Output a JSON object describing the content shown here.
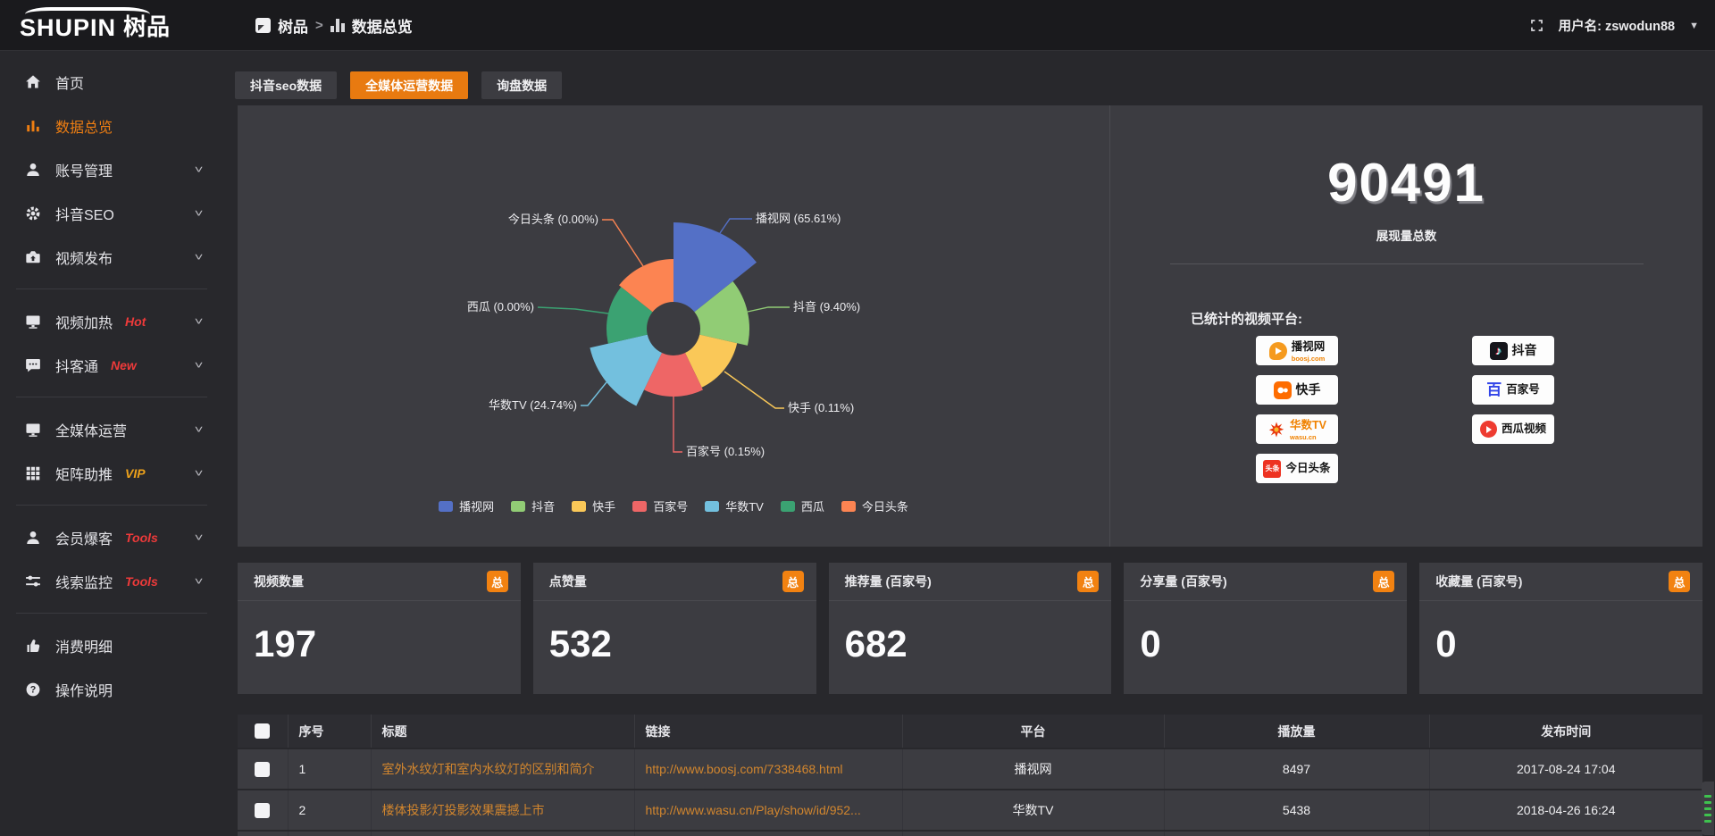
{
  "topbar": {
    "logo_text": "SHUPIN",
    "logo_suffix": "树品",
    "breadcrumb_root": "树品",
    "breadcrumb_sep": ">",
    "breadcrumb_current": "数据总览",
    "user_label": "用户名: zswodun88",
    "accent": "#e87a10"
  },
  "sidebar": {
    "items": [
      {
        "key": "home",
        "icon": "home",
        "label": "首页"
      },
      {
        "key": "data-overview",
        "icon": "bar-chart",
        "label": "数据总览",
        "active": true
      },
      {
        "key": "account-management",
        "icon": "user",
        "label": "账号管理",
        "chevron": true
      },
      {
        "key": "douyin-seo",
        "icon": "gear",
        "label": "抖音SEO",
        "chevron": true
      },
      {
        "key": "video-publish",
        "icon": "video",
        "label": "视频发布",
        "chevron": true,
        "divider_after": true
      },
      {
        "key": "video-heating",
        "icon": "monitor-play",
        "label": "视频加热",
        "badge": "Hot",
        "badge_color": "#ee3a3a",
        "chevron": true
      },
      {
        "key": "douketong",
        "icon": "chat",
        "label": "抖客通",
        "badge": "New",
        "badge_color": "#ee3a3a",
        "chevron": true,
        "divider_after": true
      },
      {
        "key": "omni-media-operation",
        "icon": "monitor",
        "label": "全媒体运营",
        "chevron": true
      },
      {
        "key": "matrix-boost",
        "icon": "grid",
        "label": "矩阵助推",
        "badge": "VIP",
        "badge_color": "#eca11b",
        "chevron": true,
        "divider_after": true
      },
      {
        "key": "member-baoke",
        "icon": "user",
        "label": "会员爆客",
        "badge": "Tools",
        "badge_color": "#ee3a3a",
        "chevron": true
      },
      {
        "key": "clue-monitor",
        "icon": "sliders",
        "label": "线索监控",
        "badge": "Tools",
        "badge_color": "#ee3a3a",
        "chevron": true,
        "divider_after": true
      },
      {
        "key": "consumption-detail",
        "icon": "thumb",
        "label": "消费明细"
      },
      {
        "key": "operation-guide",
        "icon": "question",
        "label": "操作说明"
      }
    ]
  },
  "tabs": [
    {
      "label": "抖音seo数据",
      "active": false
    },
    {
      "label": "全媒体运营数据",
      "active": true
    },
    {
      "label": "询盘数据",
      "active": false
    }
  ],
  "chart_data": {
    "type": "pie",
    "variant": "nightingale-rose",
    "items": [
      {
        "name": "播视网",
        "pct": 65.61,
        "color": "#5470c6"
      },
      {
        "name": "抖音",
        "pct": 9.4,
        "color": "#91cc75"
      },
      {
        "name": "快手",
        "pct": 0.11,
        "color": "#fac858"
      },
      {
        "name": "百家号",
        "pct": 0.15,
        "color": "#ee6666"
      },
      {
        "name": "华数TV",
        "pct": 24.74,
        "color": "#73c0de"
      },
      {
        "name": "西瓜",
        "pct": 0.0,
        "color": "#3ba272"
      },
      {
        "name": "今日头条",
        "pct": 0.0,
        "color": "#fc8452"
      }
    ],
    "legend": [
      "播视网",
      "抖音",
      "快手",
      "百家号",
      "华数TV",
      "西瓜",
      "今日头条"
    ],
    "legend_position": "bottom"
  },
  "overview": {
    "total": "90491",
    "total_label": "展现量总数",
    "platforms_label": "已统计的视频平台:",
    "platforms": [
      {
        "name": "播视网",
        "sub": "boosj.com"
      },
      {
        "name": "抖音"
      },
      {
        "name": "快手"
      },
      {
        "name": "百家号"
      },
      {
        "name": "华数TV",
        "sub": "wasu.cn"
      },
      {
        "name": "西瓜视频"
      },
      {
        "name": "今日头条"
      }
    ],
    "toutiao_logo_text": "头条",
    "baijia_logo_text": "百"
  },
  "stat_cards": [
    {
      "title": "视频数量",
      "badge": "总",
      "value": "197"
    },
    {
      "title": "点赞量",
      "badge": "总",
      "value": "532"
    },
    {
      "title": "推荐量 (百家号)",
      "badge": "总",
      "value": "682"
    },
    {
      "title": "分享量 (百家号)",
      "badge": "总",
      "value": "0"
    },
    {
      "title": "收藏量 (百家号)",
      "badge": "总",
      "value": "0"
    }
  ],
  "table": {
    "headers": [
      "",
      "序号",
      "标题",
      "链接",
      "平台",
      "播放量",
      "发布时间"
    ],
    "rows": [
      {
        "no": "1",
        "title": "室外水纹灯和室内水纹灯的区别和简介",
        "link": "http://www.boosj.com/7338468.html",
        "platform": "播视网",
        "plays": "8497",
        "time": "2017-08-24 17:04"
      },
      {
        "no": "2",
        "title": "楼体投影灯投影效果震撼上市",
        "link": "http://www.wasu.cn/Play/show/id/952...",
        "platform": "华数TV",
        "plays": "5438",
        "time": "2018-04-26 16:24"
      }
    ]
  }
}
